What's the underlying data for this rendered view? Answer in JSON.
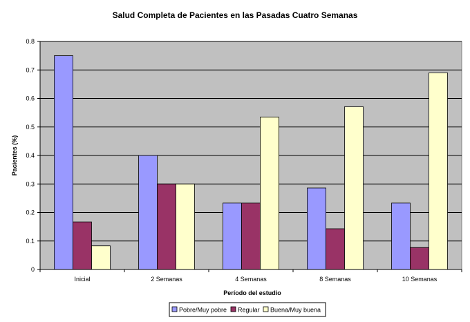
{
  "chart_data": {
    "type": "bar",
    "title": "Salud Completa de Pacientes en las Pasadas Cuatro Semanas",
    "xlabel": "Período del estudio",
    "ylabel": "Pacientes (%)",
    "ylim": [
      0,
      0.8
    ],
    "yticks": [
      "0",
      "0.1",
      "0.2",
      "0.3",
      "0.4",
      "0.5",
      "0.6",
      "0.7",
      "0.8"
    ],
    "categories": [
      "Inicial",
      "2 Semanas",
      "4 Semanas",
      "8 Semanas",
      "10 Semanas"
    ],
    "series": [
      {
        "name": "Pobre/Muy pobre",
        "color": "#9999ff",
        "values": [
          0.75,
          0.4,
          0.233,
          0.286,
          0.233
        ]
      },
      {
        "name": "Regular",
        "color": "#993366",
        "values": [
          0.167,
          0.3,
          0.233,
          0.143,
          0.077
        ]
      },
      {
        "name": "Buena/Muy buena",
        "color": "#ffffcc",
        "values": [
          0.083,
          0.3,
          0.535,
          0.571,
          0.69
        ]
      }
    ],
    "grid": true,
    "plot_background": "#c0c0c0",
    "legend_position": "bottom"
  }
}
